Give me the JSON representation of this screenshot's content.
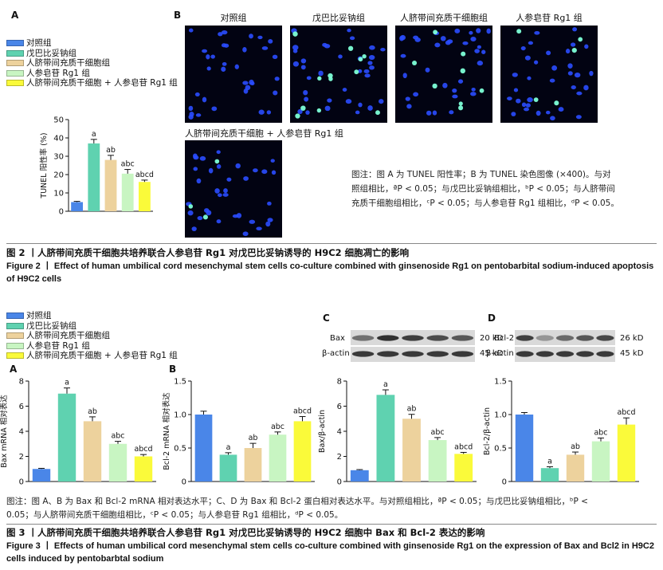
{
  "colors": [
    "#4a86e8",
    "#5fd2b0",
    "#edd29d",
    "#c8f5c2",
    "#fafa3a"
  ],
  "groups": [
    "对照组",
    "戊巴比妥钠组",
    "人脐带间充质干细胞组",
    "人参皂苷 Rg1 组",
    "人脐带间充质干细胞 + 人参皂苷 Rg1 组"
  ],
  "fig2": {
    "panel_a": "A",
    "panel_b": "B",
    "micro_titles": [
      "对照组",
      "戊巴比妥钠组",
      "人脐带间充质干细胞组",
      "人参皂苷 Rg1 组",
      "人脐带间充质干细胞 + 人参皂苷 Rg1 组"
    ],
    "caption_lines": [
      "图注：图 A 为 TUNEL 阳性率；B 为 TUNEL 染色图像 (×400)。与对",
      "照组相比，ªP < 0.05；与戊巴比妥钠组相比，ᵇP < 0.05；与人脐带间",
      "充质干细胞组相比，ᶜP < 0.05；与人参皂苷 Rg1 组相比，ᵈP < 0.05。"
    ],
    "title_cn": "图 2 丨人脐带间充质干细胞共培养联合人参皂苷 Rg1 对戊巴比妥钠诱导的 H9C2 细胞凋亡的影响",
    "title_en_1": "Figure 2 丨 Effect of human umbilical cord mesenchymal stem cells co-culture combined with ginsenoside Rg1 on pentobarbital sodium-induced apoptosis",
    "title_en_2": "of H9C2 cells"
  },
  "fig3": {
    "panel_a": "A",
    "panel_b": "B",
    "panel_c": "C",
    "panel_d": "D",
    "blot_c": {
      "rows": [
        "Bax",
        "β-actin"
      ],
      "sizes": [
        "20 kD",
        "45 kD"
      ]
    },
    "blot_d": {
      "rows": [
        "Bcl-2",
        "β-actin"
      ],
      "sizes": [
        "26 kD",
        "45 kD"
      ]
    },
    "caption_line1": "图注：图 A、B 为 Bax 和 Bcl-2 mRNA 相对表达水平；C、D 为 Bax 和 Bcl-2 蛋白相对表达水平。与对照组相比，ªP < 0.05；与戊巴比妥钠组相比，ᵇP <",
    "caption_line2": "0.05；与人脐带间充质干细胞组相比，ᶜP < 0.05；与人参皂苷 Rg1 组相比，ᵈP < 0.05。",
    "title_cn": "图 3 丨人脐带间充质干细胞共培养联合人参皂苷 Rg1 对戊巴比妥钠诱导的 H9C2 细胞中 Bax 和 Bcl-2 表达的影响",
    "title_en_1": "Figure 3 丨 Effects of human umbilical cord mesenchymal stem cells co-culture combined with ginsenoside Rg1 on the expression of Bax and Bcl2 in H9C2",
    "title_en_2": "cells induced by pentobarbtal sodium"
  },
  "chart_data": [
    {
      "id": "fig2a",
      "type": "bar",
      "ylabel": "TUNEL 阳性率 (%)",
      "ylim": [
        0,
        50
      ],
      "yticks": [
        "0",
        "10",
        "20",
        "30",
        "40",
        "50"
      ],
      "values": [
        5,
        37,
        28,
        20.5,
        16
      ],
      "errors": [
        0.4,
        2.2,
        2.5,
        2.3,
        1.0
      ],
      "labels": [
        "",
        "a",
        "ab",
        "abc",
        "abcd"
      ]
    },
    {
      "id": "fig3a",
      "type": "bar",
      "ylabel": "Bax mRNA 相对表达",
      "ylim": [
        0,
        8
      ],
      "yticks": [
        "0",
        "2",
        "4",
        "6",
        "8"
      ],
      "values": [
        1,
        7,
        4.8,
        3,
        2
      ],
      "errors": [
        0.05,
        0.45,
        0.35,
        0.2,
        0.15
      ],
      "labels": [
        "",
        "a",
        "ab",
        "abc",
        "abcd"
      ]
    },
    {
      "id": "fig3b",
      "type": "bar",
      "ylabel": "Bcl-2 mRNA 相对表达",
      "ylim": [
        0,
        1.5
      ],
      "yticks": [
        "0",
        "0.5",
        "1.0",
        "1.5"
      ],
      "values": [
        1.0,
        0.4,
        0.5,
        0.7,
        0.9
      ],
      "errors": [
        0.05,
        0.03,
        0.07,
        0.04,
        0.07
      ],
      "labels": [
        "",
        "a",
        "ab",
        "abc",
        "abcd"
      ]
    },
    {
      "id": "fig3c",
      "type": "bar",
      "ylabel": "Bax/β-actin",
      "ylim": [
        0,
        8
      ],
      "yticks": [
        "0",
        "2",
        "4",
        "6",
        "8"
      ],
      "values": [
        0.9,
        6.9,
        5,
        3.3,
        2.2
      ],
      "errors": [
        0.05,
        0.4,
        0.35,
        0.2,
        0.12
      ],
      "labels": [
        "",
        "a",
        "ab",
        "abc",
        "abcd"
      ]
    },
    {
      "id": "fig3d",
      "type": "bar",
      "ylabel": "Bcl-2/β-actin",
      "ylim": [
        0,
        1.5
      ],
      "yticks": [
        "0",
        "0.5",
        "1.0",
        "1.5"
      ],
      "values": [
        1.0,
        0.2,
        0.4,
        0.6,
        0.85
      ],
      "errors": [
        0.03,
        0.02,
        0.04,
        0.05,
        0.1
      ],
      "labels": [
        "",
        "a",
        "ab",
        "abc",
        "abcd"
      ]
    }
  ]
}
